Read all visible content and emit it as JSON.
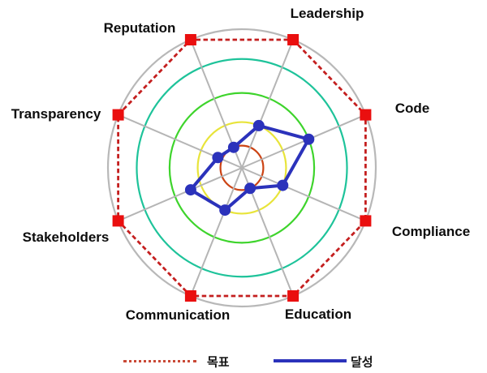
{
  "chart_data": {
    "type": "radar",
    "title": "",
    "axes": [
      "Leadership",
      "Code",
      "Compliance",
      "Education",
      "Communication",
      "Stakeholders",
      "Transparency",
      "Reputation"
    ],
    "scale": {
      "min": 0,
      "max": 5,
      "rings": 5
    },
    "series": [
      {
        "name": "목표",
        "values": [
          5,
          5,
          5,
          5,
          5,
          5,
          5,
          5
        ],
        "line_color": "#c41f1f",
        "marker_color": "#ea0f0f",
        "style": "dashed",
        "marker": "square"
      },
      {
        "name": "달성",
        "values": [
          2,
          3,
          2,
          1,
          2,
          2.4,
          1.2,
          1
        ],
        "line_color": "#2b32bb",
        "marker_color": "#2b32bb",
        "style": "solid",
        "marker": "circle"
      }
    ],
    "ring_colors_inner_to_outer": [
      "#cc4415",
      "#e8e43a",
      "#3ed42c",
      "#1ec39a",
      "#b8b8b8"
    ],
    "grid_color": "#b5b5b5",
    "legend_position": "bottom",
    "background": "#ffffff"
  }
}
